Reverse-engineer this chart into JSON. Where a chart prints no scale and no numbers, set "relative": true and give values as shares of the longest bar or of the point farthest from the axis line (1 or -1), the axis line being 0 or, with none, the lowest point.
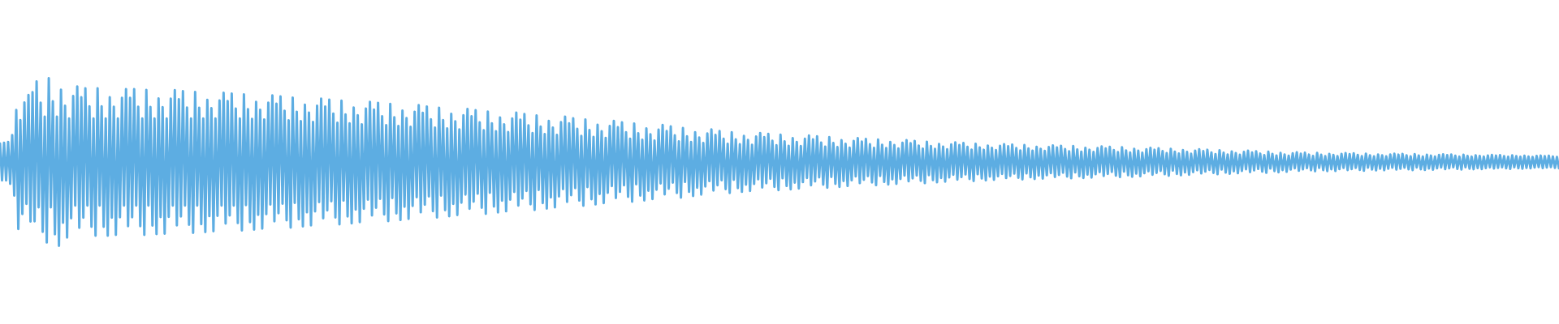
{
  "chart_data": {
    "type": "line",
    "relative": true,
    "categories": [
      null,
      null,
      null,
      null,
      null,
      null,
      null,
      null,
      null,
      null,
      null,
      null,
      null,
      null,
      null,
      null,
      null,
      null,
      null,
      null,
      null,
      null,
      null,
      null,
      null,
      null,
      null,
      null,
      null,
      null,
      null,
      null,
      null,
      null,
      null,
      null,
      null,
      null,
      null,
      null,
      null,
      null,
      null,
      null,
      null,
      null,
      null,
      null,
      null,
      null,
      null,
      null,
      null,
      null,
      null,
      null,
      null,
      null,
      null,
      null,
      null,
      null,
      null,
      null,
      null,
      null,
      null,
      null,
      null,
      null,
      null,
      null,
      null,
      null,
      null,
      null,
      null,
      null,
      null,
      null,
      null,
      null,
      null,
      null,
      null,
      null,
      null,
      null,
      null,
      null,
      null,
      null,
      null,
      null,
      null,
      null,
      null,
      null,
      null,
      null,
      null,
      null,
      null,
      null,
      null,
      null,
      null,
      null,
      null,
      null,
      null,
      null,
      null,
      null,
      null,
      null,
      null,
      null,
      null,
      null,
      null,
      null,
      null,
      null,
      null,
      null,
      null,
      null,
      null,
      null,
      null,
      null,
      null,
      null,
      null,
      null,
      null,
      null,
      null,
      null,
      null,
      null,
      null,
      null,
      null,
      null,
      null,
      null,
      null,
      null,
      null,
      null,
      null,
      null,
      null,
      null,
      null,
      null,
      null,
      null,
      null,
      null,
      null,
      null,
      null,
      null,
      null,
      null,
      null,
      null,
      null,
      null,
      null,
      null,
      null,
      null,
      null,
      null,
      null,
      null,
      null,
      null,
      null,
      null,
      null,
      null,
      null,
      null,
      null,
      null,
      null,
      null,
      null,
      null,
      null,
      null,
      null,
      null,
      null,
      null,
      null,
      null,
      null,
      null,
      null,
      null,
      null,
      null,
      null,
      null,
      null,
      null,
      null,
      null,
      null,
      null,
      null,
      null,
      null,
      null,
      null,
      null,
      null,
      null,
      null,
      null,
      null,
      null,
      null,
      null,
      null,
      null,
      null,
      null,
      null,
      null,
      null,
      null,
      null,
      null,
      null,
      null,
      null,
      null,
      null,
      null,
      null,
      null,
      null,
      null,
      null,
      null,
      null,
      null,
      null,
      null,
      null,
      null,
      null,
      null,
      null,
      null,
      null,
      null,
      null,
      null,
      null,
      null,
      null,
      null,
      null,
      null,
      null,
      null,
      null,
      null,
      null,
      null,
      null,
      null,
      null,
      null,
      null,
      null,
      null,
      null,
      null,
      null,
      null,
      null,
      null,
      null,
      null,
      null,
      null,
      null,
      null,
      null,
      null,
      null,
      null,
      null,
      null,
      null,
      null,
      null,
      null,
      null,
      null,
      null,
      null,
      null,
      null,
      null,
      null,
      null,
      null,
      null,
      null,
      null,
      null,
      null,
      null,
      null,
      null,
      null,
      null,
      null,
      null,
      null,
      null,
      null,
      null,
      null,
      null,
      null,
      null,
      null,
      null,
      null,
      null,
      null,
      null,
      null,
      null,
      null,
      null,
      null,
      null,
      null,
      null,
      null,
      null,
      null,
      null,
      null,
      null,
      null,
      null,
      null,
      null,
      null,
      null,
      null,
      null,
      null,
      null,
      null,
      null,
      null,
      null,
      null,
      null,
      null,
      null,
      null,
      null,
      null,
      null,
      null,
      null,
      null,
      null,
      null,
      null,
      null,
      null,
      null,
      null,
      null,
      null,
      null,
      null,
      null,
      null,
      null,
      null,
      null,
      null,
      null,
      null,
      null,
      null,
      null,
      null,
      null,
      null,
      null,
      null,
      null,
      null,
      null,
      null,
      null,
      null,
      null,
      null,
      null,
      null,
      null,
      null,
      null,
      null,
      null,
      null,
      null,
      null,
      null,
      null,
      null,
      null,
      null,
      null,
      null,
      null,
      null,
      null,
      null,
      null,
      null,
      null,
      null,
      null,
      null,
      null,
      null,
      null,
      null,
      null,
      null,
      null,
      null,
      null,
      null,
      null,
      null,
      null,
      null,
      null,
      null,
      null,
      null,
      null,
      null,
      null,
      null,
      null,
      null,
      null,
      null,
      null,
      null,
      null,
      null,
      null,
      null,
      null,
      null,
      null,
      null,
      null,
      null,
      null,
      null,
      null,
      null,
      null,
      null,
      null,
      null,
      null,
      null,
      null,
      null,
      null,
      null,
      null,
      null,
      null,
      null,
      null,
      null,
      null,
      null,
      null,
      null,
      null,
      null,
      null,
      null,
      null,
      null,
      null,
      null,
      null,
      null,
      null,
      null,
      null,
      null,
      null,
      null,
      null,
      null,
      null,
      null,
      null,
      null,
      null,
      null,
      null,
      null,
      null,
      null,
      null,
      null,
      null,
      null,
      null,
      null,
      null,
      null,
      null,
      null,
      null,
      null,
      null,
      null,
      null,
      null,
      null,
      null,
      null,
      null,
      null,
      null,
      null,
      null,
      null,
      null,
      null,
      null,
      null,
      null,
      null,
      null,
      null,
      null,
      null,
      null,
      null,
      null,
      null,
      null,
      null,
      null,
      null,
      null,
      null,
      null,
      null,
      null,
      null,
      null,
      null,
      null,
      null,
      null,
      null,
      null,
      null,
      null,
      null,
      null,
      null,
      null,
      null,
      null,
      null,
      null,
      null,
      null,
      null,
      null,
      null,
      null,
      null,
      null,
      null,
      null,
      null,
      null,
      null,
      null,
      null,
      null,
      null,
      null,
      null,
      null,
      null,
      null,
      null,
      null,
      null,
      null,
      null,
      null,
      null,
      null,
      null,
      null,
      null,
      null,
      null,
      null,
      null,
      null,
      null,
      null,
      null,
      null,
      null,
      null,
      null,
      null,
      null,
      null,
      null,
      null,
      null,
      null,
      null,
      null,
      null,
      null,
      null,
      null,
      null,
      null,
      null,
      null,
      null,
      null,
      null,
      null,
      null,
      null,
      null,
      null,
      null,
      null,
      null,
      null,
      null,
      null,
      null,
      null,
      null,
      null,
      null,
      null,
      null,
      null,
      null,
      null,
      null,
      null,
      null,
      null,
      null,
      null,
      null,
      null,
      null,
      null,
      null,
      null,
      null,
      null,
      null,
      null,
      null,
      null,
      null,
      null,
      null,
      null,
      null,
      null,
      null,
      null,
      null,
      null,
      null,
      null,
      null,
      null,
      null,
      null,
      null,
      null,
      null,
      null,
      null,
      null,
      null,
      null,
      null,
      null,
      null,
      null,
      null,
      null,
      null,
      null,
      null,
      null,
      null,
      null,
      null,
      null,
      null,
      null,
      null,
      null,
      null,
      null,
      null,
      null,
      null,
      null,
      null,
      null,
      null,
      null,
      null,
      null,
      null,
      null,
      null,
      null,
      null,
      null,
      null,
      null,
      null,
      null
    ],
    "series": [
      {
        "color": "#5dade2",
        "values": [
          0.61,
          0.39,
          0.615,
          0.39,
          0.62,
          0.37,
          0.66,
          0.3,
          0.81,
          0.1,
          0.75,
          0.19,
          0.855,
          0.25,
          0.9,
          0.145,
          0.917,
          0.146,
          0.98,
          0.23,
          0.854,
          0.083,
          0.77,
          0.02,
          1,
          0.23,
          0.862,
          0.069,
          0.77,
          0,
          0.931,
          0.138,
          0.836,
          0.05,
          0.76,
          0.164,
          0.893,
          0.24,
          0.95,
          0.107,
          0.886,
          0.168,
          0.94,
          0.24,
          0.832,
          0.114,
          0.76,
          0.06,
          0.94,
          0.24,
          0.832,
          0.114,
          0.76,
          0.06,
          0.886,
          0.168,
          0.83,
          0.065,
          0.76,
          0.17,
          0.883,
          0.24,
          0.935,
          0.117,
          0.883,
          0.17,
          0.935,
          0.24,
          0.83,
          0.117,
          0.76,
          0.065,
          0.93,
          0.24,
          0.828,
          0.121,
          0.76,
          0.07,
          0.879,
          0.172,
          0.827,
          0.072,
          0.76,
          0.173,
          0.878,
          0.24,
          0.928,
          0.122,
          0.874,
          0.175,
          0.923,
          0.24,
          0.825,
          0.126,
          0.76,
          0.077,
          0.918,
          0.24,
          0.823,
          0.129,
          0.76,
          0.082,
          0.871,
          0.177,
          0.821,
          0.087,
          0.76,
          0.179,
          0.867,
          0.24,
          0.913,
          0.133,
          0.864,
          0.181,
          0.908,
          0.24,
          0.819,
          0.136,
          0.76,
          0.092,
          0.903,
          0.243,
          0.815,
          0.141,
          0.757,
          0.097,
          0.859,
          0.185,
          0.811,
          0.103,
          0.754,
          0.189,
          0.854,
          0.246,
          0.897,
          0.146,
          0.848,
          0.194,
          0.891,
          0.251,
          0.806,
          0.152,
          0.749,
          0.109,
          0.884,
          0.256,
          0.8,
          0.158,
          0.744,
          0.116,
          0.842,
          0.2,
          0.795,
          0.122,
          0.739,
          0.205,
          0.836,
          0.261,
          0.878,
          0.164,
          0.831,
          0.211,
          0.872,
          0.266,
          0.789,
          0.169,
          0.734,
          0.128,
          0.866,
          0.27,
          0.784,
          0.175,
          0.73,
          0.134,
          0.825,
          0.216,
          0.779,
          0.141,
          0.725,
          0.221,
          0.819,
          0.275,
          0.859,
          0.181,
          0.813,
          0.227,
          0.853,
          0.28,
          0.773,
          0.187,
          0.72,
          0.147,
          0.846,
          0.285,
          0.767,
          0.193,
          0.715,
          0.154,
          0.807,
          0.233,
          0.762,
          0.161,
          0.71,
          0.238,
          0.8,
          0.29,
          0.839,
          0.2,
          0.793,
          0.245,
          0.831,
          0.295,
          0.755,
          0.207,
          0.705,
          0.169,
          0.824,
          0.3,
          0.75,
          0.213,
          0.7,
          0.176,
          0.787,
          0.25,
          0.743,
          0.184,
          0.694,
          0.257,
          0.779,
          0.306,
          0.816,
          0.221,
          0.773,
          0.263,
          0.809,
          0.311,
          0.737,
          0.227,
          0.689,
          0.191,
          0.801,
          0.316,
          0.731,
          0.234,
          0.684,
          0.199,
          0.766,
          0.269,
          0.725,
          0.206,
          0.679,
          0.275,
          0.76,
          0.321,
          0.794,
          0.24,
          0.752,
          0.282,
          0.786,
          0.327,
          0.718,
          0.248,
          0.673,
          0.214,
          0.778,
          0.333,
          0.711,
          0.255,
          0.667,
          0.222,
          0.745,
          0.289,
          0.705,
          0.23,
          0.662,
          0.295,
          0.738,
          0.338,
          0.77,
          0.262,
          0.73,
          0.302,
          0.761,
          0.344,
          0.698,
          0.27,
          0.656,
          0.239,
          0.753,
          0.35,
          0.691,
          0.278,
          0.65,
          0.247,
          0.722,
          0.309,
          0.684,
          0.255,
          0.644,
          0.316,
          0.715,
          0.356,
          0.745,
          0.285,
          0.708,
          0.322,
          0.737,
          0.361,
          0.678,
          0.292,
          0.639,
          0.263,
          0.729,
          0.367,
          0.671,
          0.3,
          0.633,
          0.271,
          0.7,
          0.329,
          0.665,
          0.279,
          0.628,
          0.335,
          0.693,
          0.372,
          0.721,
          0.307,
          0.685,
          0.341,
          0.712,
          0.377,
          0.659,
          0.315,
          0.623,
          0.288,
          0.703,
          0.381,
          0.653,
          0.322,
          0.619,
          0.297,
          0.678,
          0.347,
          0.646,
          0.306,
          0.614,
          0.354,
          0.67,
          0.386,
          0.694,
          0.33,
          0.662,
          0.361,
          0.685,
          0.391,
          0.639,
          0.338,
          0.609,
          0.315,
          0.678,
          0.394,
          0.635,
          0.344,
          0.606,
          0.322,
          0.656,
          0.365,
          0.631,
          0.327,
          0.603,
          0.369,
          0.652,
          0.397,
          0.673,
          0.348,
          0.648,
          0.373,
          0.668,
          0.4,
          0.627,
          0.352,
          0.6,
          0.332,
          0.663,
          0.403,
          0.623,
          0.357,
          0.597,
          0.337,
          0.643,
          0.377,
          0.62,
          0.342,
          0.595,
          0.38,
          0.639,
          0.405,
          0.658,
          0.361,
          0.635,
          0.384,
          0.653,
          0.408,
          0.616,
          0.365,
          0.592,
          0.347,
          0.648,
          0.411,
          0.613,
          0.37,
          0.589,
          0.352,
          0.63,
          0.387,
          0.609,
          0.357,
          0.586,
          0.391,
          0.626,
          0.414,
          0.643,
          0.374,
          0.622,
          0.394,
          0.638,
          0.416,
          0.606,
          0.378,
          0.584,
          0.362,
          0.634,
          0.417,
          0.603,
          0.381,
          0.583,
          0.366,
          0.619,
          0.397,
          0.601,
          0.37,
          0.581,
          0.399,
          0.615,
          0.419,
          0.63,
          0.385,
          0.612,
          0.402,
          0.626,
          0.42,
          0.598,
          0.388,
          0.58,
          0.374,
          0.621,
          0.422,
          0.595,
          0.392,
          0.578,
          0.379,
          0.608,
          0.405,
          0.592,
          0.383,
          0.576,
          0.408,
          0.605,
          0.424,
          0.617,
          0.395,
          0.601,
          0.41,
          0.613,
          0.426,
          0.59,
          0.399,
          0.574,
          0.387,
          0.609,
          0.427,
          0.587,
          0.402,
          0.573,
          0.391,
          0.598,
          0.413,
          0.585,
          0.394,
          0.571,
          0.415,
          0.596,
          0.429,
          0.606,
          0.404,
          0.594,
          0.417,
          0.604,
          0.431,
          0.583,
          0.406,
          0.569,
          0.396,
          0.601,
          0.432,
          0.581,
          0.409,
          0.568,
          0.399,
          0.591,
          0.419,
          0.579,
          0.401,
          0.566,
          0.421,
          0.589,
          0.434,
          0.599,
          0.411,
          0.587,
          0.423,
          0.597,
          0.436,
          0.577,
          0.413,
          0.564,
          0.403,
          0.595,
          0.438,
          0.575,
          0.415,
          0.562,
          0.405,
          0.585,
          0.425,
          0.573,
          0.407,
          0.56,
          0.427,
          0.583,
          0.44,
          0.593,
          0.417,
          0.581,
          0.429,
          0.59,
          0.441,
          0.571,
          0.419,
          0.559,
          0.41,
          0.588,
          0.443,
          0.569,
          0.421,
          0.557,
          0.412,
          0.579,
          0.431,
          0.567,
          0.415,
          0.555,
          0.433,
          0.576,
          0.445,
          0.585,
          0.424,
          0.573,
          0.435,
          0.582,
          0.447,
          0.565,
          0.427,
          0.553,
          0.418,
          0.579,
          0.449,
          0.562,
          0.429,
          0.551,
          0.421,
          0.571,
          0.438,
          0.56,
          0.424,
          0.549,
          0.44,
          0.568,
          0.451,
          0.576,
          0.432,
          0.565,
          0.443,
          0.573,
          0.453,
          0.557,
          0.435,
          0.547,
          0.427,
          0.57,
          0.455,
          0.555,
          0.437,
          0.545,
          0.43,
          0.563,
          0.445,
          0.553,
          0.433,
          0.543,
          0.447,
          0.56,
          0.457,
          0.567,
          0.44,
          0.557,
          0.45,
          0.564,
          0.459,
          0.55,
          0.443,
          0.541,
          0.436,
          0.561,
          0.461,
          0.548,
          0.446,
          0.539,
          0.439,
          0.554,
          0.452,
          0.545,
          0.442,
          0.537,
          0.455,
          0.552,
          0.463,
          0.558,
          0.448,
          0.549,
          0.456,
          0.555,
          0.464,
          0.544,
          0.451,
          0.536,
          0.445,
          0.554,
          0.465,
          0.543,
          0.452,
          0.535,
          0.446,
          0.548,
          0.457,
          0.542,
          0.447,
          0.535,
          0.458,
          0.548,
          0.465,
          0.553,
          0.452,
          0.547,
          0.458,
          0.552,
          0.465,
          0.542,
          0.453,
          0.535,
          0.448,
          0.55,
          0.466,
          0.54,
          0.455,
          0.534,
          0.45,
          0.545,
          0.46,
          0.54,
          0.451,
          0.534,
          0.46,
          0.545,
          0.466,
          0.549,
          0.455,
          0.544,
          0.46,
          0.548,
          0.466,
          0.54,
          0.456,
          0.534,
          0.452,
          0.547,
          0.467,
          0.539,
          0.457,
          0.533,
          0.453,
          0.543,
          0.461,
          0.538,
          0.454,
          0.533,
          0.462,
          0.542,
          0.467,
          0.546,
          0.458,
          0.541,
          0.463,
          0.545,
          0.468,
          0.537,
          0.459,
          0.532,
          0.455,
          0.543,
          0.468,
          0.536,
          0.46,
          0.532,
          0.457,
          0.54,
          0.464,
          0.536,
          0.458,
          0.532,
          0.464,
          0.539,
          0.468,
          0.542,
          0.461,
          0.538,
          0.465,
          0.541,
          0.469,
          0.535,
          0.462,
          0.531,
          0.459,
          0.54,
          0.469,
          0.535,
          0.463,
          0.531,
          0.46,
          0.537,
          0.465,
          0.533,
          0.462,
          0.53,
          0.467,
          0.536,
          0.47,
          0.538,
          0.464,
          0.535,
          0.467,
          0.537,
          0.47,
          0.533,
          0.465,
          0.53,
          0.463
        ]
      }
    ]
  }
}
